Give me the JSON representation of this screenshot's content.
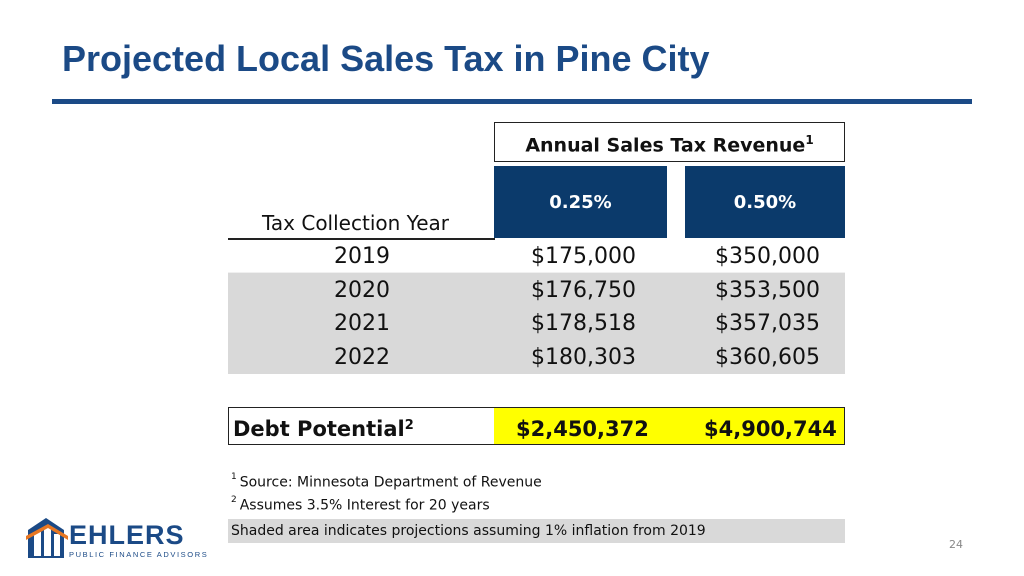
{
  "title": "Projected Local Sales Tax in Pine City",
  "table": {
    "group_header": "Annual Sales Tax Revenue",
    "group_header_note": "1",
    "rates": [
      "0.25%",
      "0.50%"
    ],
    "row_header": "Tax Collection Year",
    "rows": [
      {
        "year": "2019",
        "v1": "$175,000",
        "v2": "$350,000"
      },
      {
        "year": "2020",
        "v1": "$176,750",
        "v2": "$353,500"
      },
      {
        "year": "2021",
        "v1": "$178,518",
        "v2": "$357,035"
      },
      {
        "year": "2022",
        "v1": "$180,303",
        "v2": "$360,605"
      }
    ],
    "debt": {
      "label": "Debt Potential",
      "note": "2",
      "v1": "$2,450,372",
      "v2": "$4,900,744"
    }
  },
  "footnotes": [
    {
      "mark": "1",
      "text": "Source: Minnesota Department of Revenue"
    },
    {
      "mark": "2",
      "text": "Assumes 3.5% Interest for 20 years"
    }
  ],
  "shade_note": "Shaded area indicates projections assuming 1% inflation from 2019",
  "logo": {
    "name": "EHLERS",
    "sub": "PUBLIC FINANCE ADVISORS"
  },
  "page_number": "24",
  "colors": {
    "title_blue": "#1b4a86",
    "header_navy": "#0b3a6b",
    "shade_gray": "#d9d9d9",
    "highlight_yellow": "#ffff00"
  }
}
